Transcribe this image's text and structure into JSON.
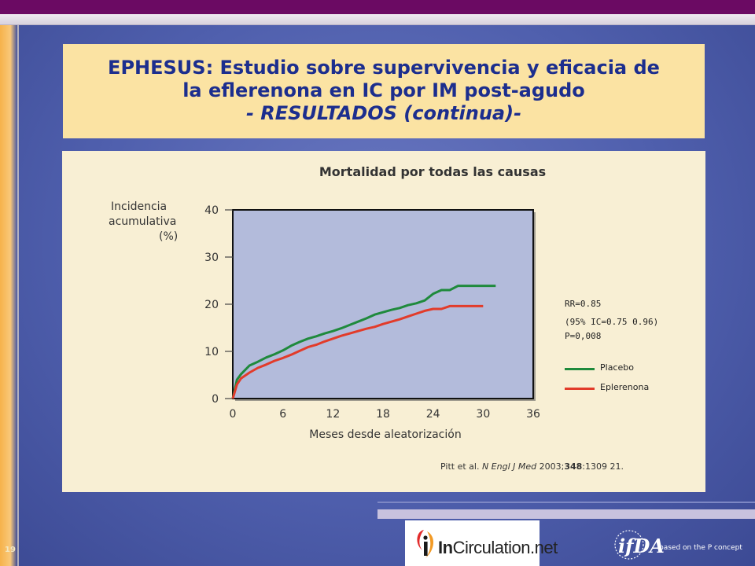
{
  "header": {
    "title_line1": "EPHESUS: Estudio sobre supervivencia y eficacia de",
    "title_line2": "la eflerenona en IC por IM post-agudo",
    "title_line3": "- RESULTADOS (continua)-"
  },
  "chart_data": {
    "type": "line",
    "title": "Mortalidad por todas las causas",
    "ylabel": [
      "Incidencia",
      "acumulativa",
      "(%)"
    ],
    "xlabel": "Meses desde aleatorización",
    "xlim": [
      0,
      36
    ],
    "ylim": [
      0,
      40
    ],
    "xticks": [
      0,
      6,
      12,
      18,
      24,
      30,
      36
    ],
    "yticks": [
      0,
      10,
      20,
      30,
      40
    ],
    "legend_position": "right",
    "series": [
      {
        "name": "Placebo",
        "color": "#1f8a3c",
        "x": [
          0,
          0.5,
          1,
          2,
          3,
          4,
          5,
          6,
          7,
          8,
          9,
          10,
          11,
          12,
          13,
          14,
          15,
          16,
          17,
          18,
          19,
          20,
          21,
          22,
          23,
          24,
          25,
          26,
          27,
          28,
          29,
          31.5
        ],
        "y": [
          0,
          4,
          5.2,
          7,
          7.8,
          8.7,
          9.4,
          10.2,
          11.2,
          12,
          12.7,
          13.2,
          13.8,
          14.3,
          14.9,
          15.6,
          16.3,
          17,
          17.8,
          18.3,
          18.8,
          19.2,
          19.8,
          20.2,
          20.8,
          22.2,
          23,
          23,
          23.9,
          23.9,
          23.9,
          23.9
        ]
      },
      {
        "name": "Eplerenona",
        "color": "#e23b2a",
        "x": [
          0,
          0.5,
          1,
          2,
          3,
          4,
          5,
          6,
          7,
          8,
          9,
          10,
          11,
          12,
          13,
          14,
          15,
          16,
          17,
          18,
          19,
          20,
          21,
          22,
          23,
          24,
          25,
          26,
          27,
          28,
          29,
          30
        ],
        "y": [
          0,
          3,
          4.3,
          5.5,
          6.5,
          7.2,
          8,
          8.6,
          9.3,
          10.1,
          10.9,
          11.4,
          12.1,
          12.7,
          13.3,
          13.8,
          14.3,
          14.8,
          15.2,
          15.8,
          16.3,
          16.8,
          17.4,
          18,
          18.6,
          19,
          19,
          19.6,
          19.6,
          19.6,
          19.6,
          19.6
        ]
      }
    ],
    "annotations": {
      "rr": "RR=0.85",
      "ci": "(95% IC=0.75  0.96)",
      "p": "P=0,008"
    }
  },
  "citation": {
    "authors": "Pitt et al.",
    "journal": "N Engl J Med",
    "year": "2003;",
    "volume": "348",
    "pages": ":1309   21."
  },
  "footer": {
    "page_number": "19",
    "logo_brand_bold": "In",
    "logo_brand_rest": "Circulation.net",
    "ifda_text": "ifDA",
    "based_on": "based on the  P  concept"
  }
}
